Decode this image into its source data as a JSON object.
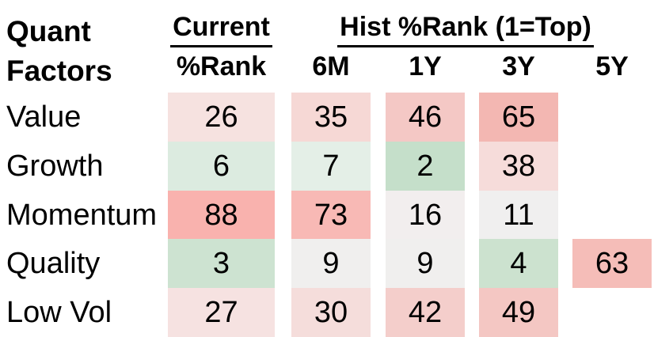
{
  "header": {
    "row_header_line1": "Quant",
    "row_header_line2": "Factors",
    "current_group_label": "Current",
    "hist_group_label": "Hist %Rank (1=Top)"
  },
  "chart_data": {
    "type": "heatmap",
    "columns": [
      "%Rank",
      "6M",
      "1Y",
      "3Y",
      "5Y"
    ],
    "column_groups": [
      {
        "label": "Current",
        "columns": [
          "%Rank"
        ]
      },
      {
        "label": "Hist %Rank (1=Top)",
        "columns": [
          "6M",
          "1Y",
          "3Y",
          "5Y"
        ]
      }
    ],
    "scale_note": "1=Top",
    "color_scale": {
      "low_green": "#c5dfca",
      "neutral": "#f1efef",
      "high_red": "#f9b2ae"
    },
    "rows": [
      {
        "label": "Value",
        "values": [
          26,
          35,
          46,
          65,
          null
        ],
        "colors": [
          "#f6e2e0",
          "#f6d8d5",
          "#f4c8c5",
          "#f3b7b2",
          null
        ]
      },
      {
        "label": "Growth",
        "values": [
          6,
          7,
          2,
          38,
          null
        ],
        "colors": [
          "#dcebe0",
          "#e4efe7",
          "#c5dfca",
          "#f6dcda",
          null
        ]
      },
      {
        "label": "Momentum",
        "values": [
          88,
          73,
          16,
          11,
          null
        ],
        "colors": [
          "#f9b2ae",
          "#f8b9b5",
          "#f2eeee",
          "#f0efef",
          null
        ]
      },
      {
        "label": "Quality",
        "values": [
          3,
          9,
          9,
          4,
          63
        ],
        "colors": [
          "#cde3d1",
          "#f0efee",
          "#f0efee",
          "#cce2cf",
          "#f5bdb8"
        ]
      },
      {
        "label": "Low Vol",
        "values": [
          27,
          30,
          42,
          49,
          null
        ],
        "colors": [
          "#f6e2e1",
          "#f5dddb",
          "#f4cecb",
          "#f4c7c3",
          null
        ]
      }
    ]
  }
}
